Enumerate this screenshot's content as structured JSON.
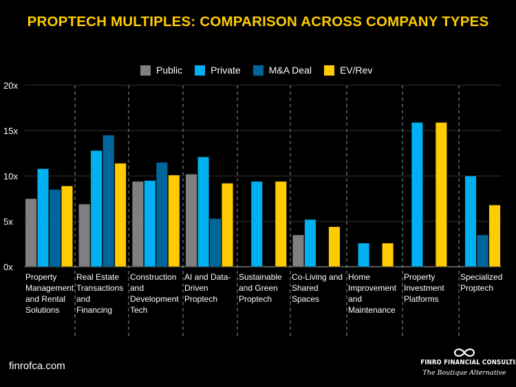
{
  "chart_data": {
    "type": "bar",
    "title": "PROPTECH MULTIPLES: COMPARISON ACROSS COMPANY TYPES",
    "xlabel": "",
    "ylabel": "",
    "ylim": [
      0,
      20
    ],
    "yticks": [
      0,
      5,
      10,
      15,
      20
    ],
    "ytick_labels": [
      "0x",
      "5x",
      "10x",
      "15x",
      "20x"
    ],
    "grid": true,
    "legend_position": "top",
    "categories": [
      [
        "Property",
        "Management",
        "and Rental",
        "Solutions"
      ],
      [
        "Real Estate",
        "Transactions",
        "and",
        "Financing"
      ],
      [
        "Construction",
        "and",
        "Development",
        "Tech"
      ],
      [
        "AI and Data-",
        "Driven",
        "Proptech"
      ],
      [
        "Sustainable",
        "and Green",
        "Proptech"
      ],
      [
        "Co-Living and",
        "Shared",
        "Spaces"
      ],
      [
        "Home",
        "Improvement",
        "and",
        "Maintenance"
      ],
      [
        "Property",
        "Investment",
        "Platforms"
      ],
      [
        "Specialized",
        "Proptech"
      ]
    ],
    "series": [
      {
        "name": "Public",
        "color": "#808080",
        "values": [
          7.5,
          6.9,
          9.4,
          10.2,
          null,
          3.5,
          null,
          null,
          null
        ]
      },
      {
        "name": "Private",
        "color": "#00B0F0",
        "values": [
          10.8,
          12.8,
          9.5,
          12.1,
          9.4,
          5.2,
          2.6,
          15.9,
          10.0
        ]
      },
      {
        "name": "M&A Deal",
        "color": "#006699",
        "values": [
          8.5,
          14.5,
          11.5,
          5.3,
          null,
          null,
          null,
          null,
          3.5
        ]
      },
      {
        "name": "EV/Rev",
        "color": "#FFCC00",
        "values": [
          8.9,
          11.4,
          10.1,
          9.2,
          9.4,
          4.4,
          2.6,
          15.9,
          6.8
        ]
      }
    ]
  },
  "footer": {
    "website": "finrofca.com",
    "logo_name": "FINRO FINANCIAL CONSULTING",
    "logo_tagline": "The Boutique Alternative",
    "logo_icon": "infinity-icon"
  }
}
